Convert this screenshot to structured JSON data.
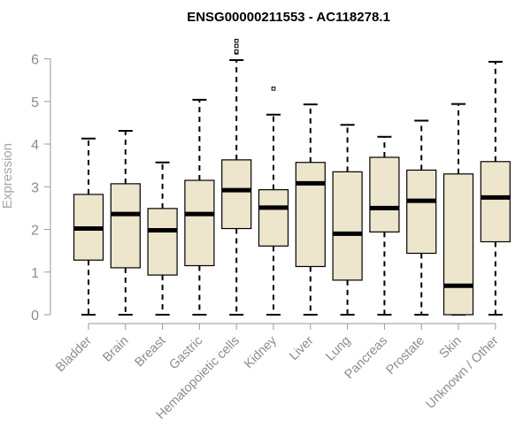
{
  "chart_data": {
    "type": "boxplot",
    "title": "ENSG00000211553 - AC118278.1",
    "ylabel": "Expression",
    "xlabel": "",
    "ylim": [
      0,
      6
    ],
    "yticks": [
      0,
      1,
      2,
      3,
      4,
      5,
      6
    ],
    "grid": false,
    "box_fill": "#ede5cc",
    "median_color": "#000000",
    "categories": [
      "Bladder",
      "Brain",
      "Breast",
      "Gastric",
      "Hematopoietic cells",
      "Kidney",
      "Liver",
      "Lung",
      "Pancreas",
      "Prostate",
      "Skin",
      "Unknown / Other"
    ],
    "boxes": [
      {
        "min": 0.0,
        "q1": 1.28,
        "median": 2.02,
        "q3": 2.82,
        "max": 4.13,
        "outliers": []
      },
      {
        "min": 0.0,
        "q1": 1.1,
        "median": 2.36,
        "q3": 3.07,
        "max": 4.31,
        "outliers": []
      },
      {
        "min": 0.0,
        "q1": 0.93,
        "median": 1.98,
        "q3": 2.49,
        "max": 3.57,
        "outliers": []
      },
      {
        "min": 0.0,
        "q1": 1.15,
        "median": 2.36,
        "q3": 3.15,
        "max": 5.04,
        "outliers": []
      },
      {
        "min": 0.0,
        "q1": 2.02,
        "median": 2.92,
        "q3": 3.63,
        "max": 5.97,
        "outliers": [
          6.15,
          6.17,
          6.3,
          6.42
        ]
      },
      {
        "min": 0.0,
        "q1": 1.61,
        "median": 2.51,
        "q3": 2.93,
        "max": 4.69,
        "outliers": [
          5.3
        ]
      },
      {
        "min": 0.0,
        "q1": 1.13,
        "median": 3.08,
        "q3": 3.57,
        "max": 4.93,
        "outliers": []
      },
      {
        "min": 0.0,
        "q1": 0.81,
        "median": 1.9,
        "q3": 3.35,
        "max": 4.45,
        "outliers": []
      },
      {
        "min": 0.0,
        "q1": 1.94,
        "median": 2.5,
        "q3": 3.69,
        "max": 4.17,
        "outliers": []
      },
      {
        "min": 0.0,
        "q1": 1.44,
        "median": 2.67,
        "q3": 3.39,
        "max": 4.55,
        "outliers": []
      },
      {
        "min": 0.0,
        "q1": 0.0,
        "median": 0.68,
        "q3": 3.3,
        "max": 4.94,
        "outliers": []
      },
      {
        "min": 0.0,
        "q1": 1.71,
        "median": 2.75,
        "q3": 3.59,
        "max": 5.93,
        "outliers": []
      }
    ]
  }
}
